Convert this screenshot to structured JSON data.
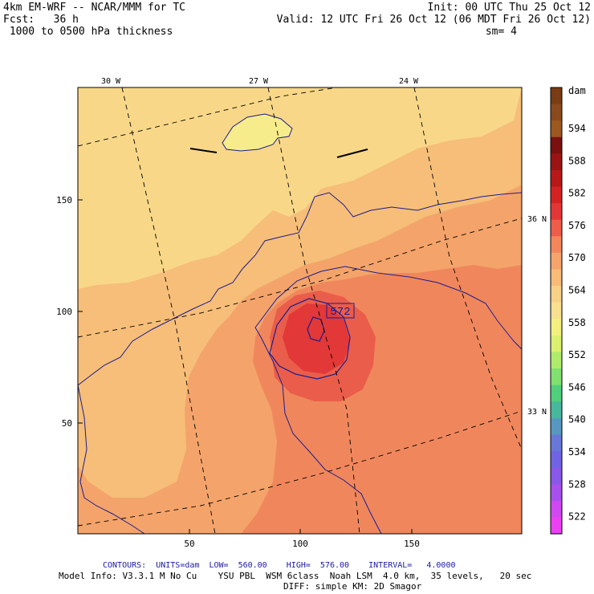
{
  "header": {
    "line1_left": "4km EM-WRF -- NCAR/MMM for TC",
    "line2_left": "Fcst:   36 h",
    "line3_left": " 1000 to 0500 hPa thickness",
    "line1_right": "Init: 00 UTC Thu 25 Oct 12",
    "line2_right": "Valid: 12 UTC Fri 26 Oct 12 (06 MDT Fri 26 Oct 12)",
    "line3_right": "sm= 4"
  },
  "map": {
    "lon_labels": [
      "30 W",
      "27 W",
      "24 W"
    ],
    "lat_labels": [
      "36 N",
      "33 N"
    ],
    "y_ticks": [
      "150",
      "100",
      "50"
    ],
    "x_ticks": [
      "50",
      "100",
      "150"
    ],
    "contour_label": "572",
    "colors": {
      "pale_yellow": "#f6ec8c",
      "light_orange": "#f8d888",
      "orange": "#f6be78",
      "dark_orange": "#f4a46a",
      "red_orange": "#f0875c",
      "red": "#ea5d4a",
      "deep_red": "#e23838",
      "contour": "#1c1c90"
    }
  },
  "colorbar": {
    "unit": "dam",
    "labels": [
      "594",
      "588",
      "582",
      "576",
      "570",
      "564",
      "558",
      "552",
      "546",
      "540",
      "534",
      "528",
      "522"
    ],
    "colors": [
      "#7a3c14",
      "#8a4a1c",
      "#9c581f",
      "#7a1010",
      "#9a1414",
      "#b81818",
      "#d42222",
      "#e43636",
      "#ee5c4a",
      "#f4865c",
      "#f6a46c",
      "#f8bc78",
      "#f9d088",
      "#f8e090",
      "#f4f080",
      "#dcf070",
      "#b0ec6c",
      "#80e070",
      "#50d07c",
      "#48b89c",
      "#5898c0",
      "#6878d8",
      "#7064e4",
      "#8858e8",
      "#a850ee",
      "#d048f2",
      "#ec40f4"
    ]
  },
  "footer": {
    "contours": "CONTOURS:  UNITS=dam  LOW=  560.00    HIGH=  576.00    INTERVAL=   4.0000",
    "model_info": "Model Info: V3.3.1 M No Cu    YSU PBL  WSM 6class  Noah LSM  4.0 km,  35 levels,   20 sec",
    "diff": "DIFF: simple KM: 2D Smagor"
  }
}
